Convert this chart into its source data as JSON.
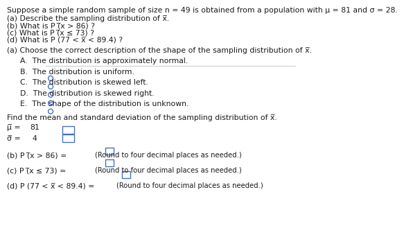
{
  "bg_color": "#ffffff",
  "text_color": "#1a1a1a",
  "blue_color": "#4472c4",
  "gray_line": "#cccccc",
  "header_text": "Suppose a simple random sample of size n = 49 is obtained from a population with μ = 81 and σ = 28.",
  "sub_questions": [
    "(a) Describe the sampling distribution of x̅.",
    "(b) What is P (̅x > 86) ?",
    "(c) What is P (̅x ≤ 73) ?",
    "(d) What is P (77 < x̅ < 89.4) ?"
  ],
  "part_a_header": "(a) Choose the correct description of the shape of the sampling distribution of x̅.",
  "choices": [
    "A.  The distribution is approximately normal.",
    "B.  The distribution is uniform.",
    "C.  The distribution is skewed left.",
    "D.  The distribution is skewed right.",
    "E.  The shape of the distribution is unknown."
  ],
  "find_text": "Find the mean and standard deviation of the sampling distribution of x̅.",
  "mu_value": "81",
  "sigma_value": "4",
  "part_b_text": "(b) P (̅x > 86) = ",
  "part_c_text": "(c) P (̅x ≤ 73) = ",
  "part_d_text": "(d) P (77 < x̅ < 89.4) = ",
  "round_note": "(Round to four decimal places as needed.)",
  "font_size": 7.8,
  "small_font": 7.2
}
